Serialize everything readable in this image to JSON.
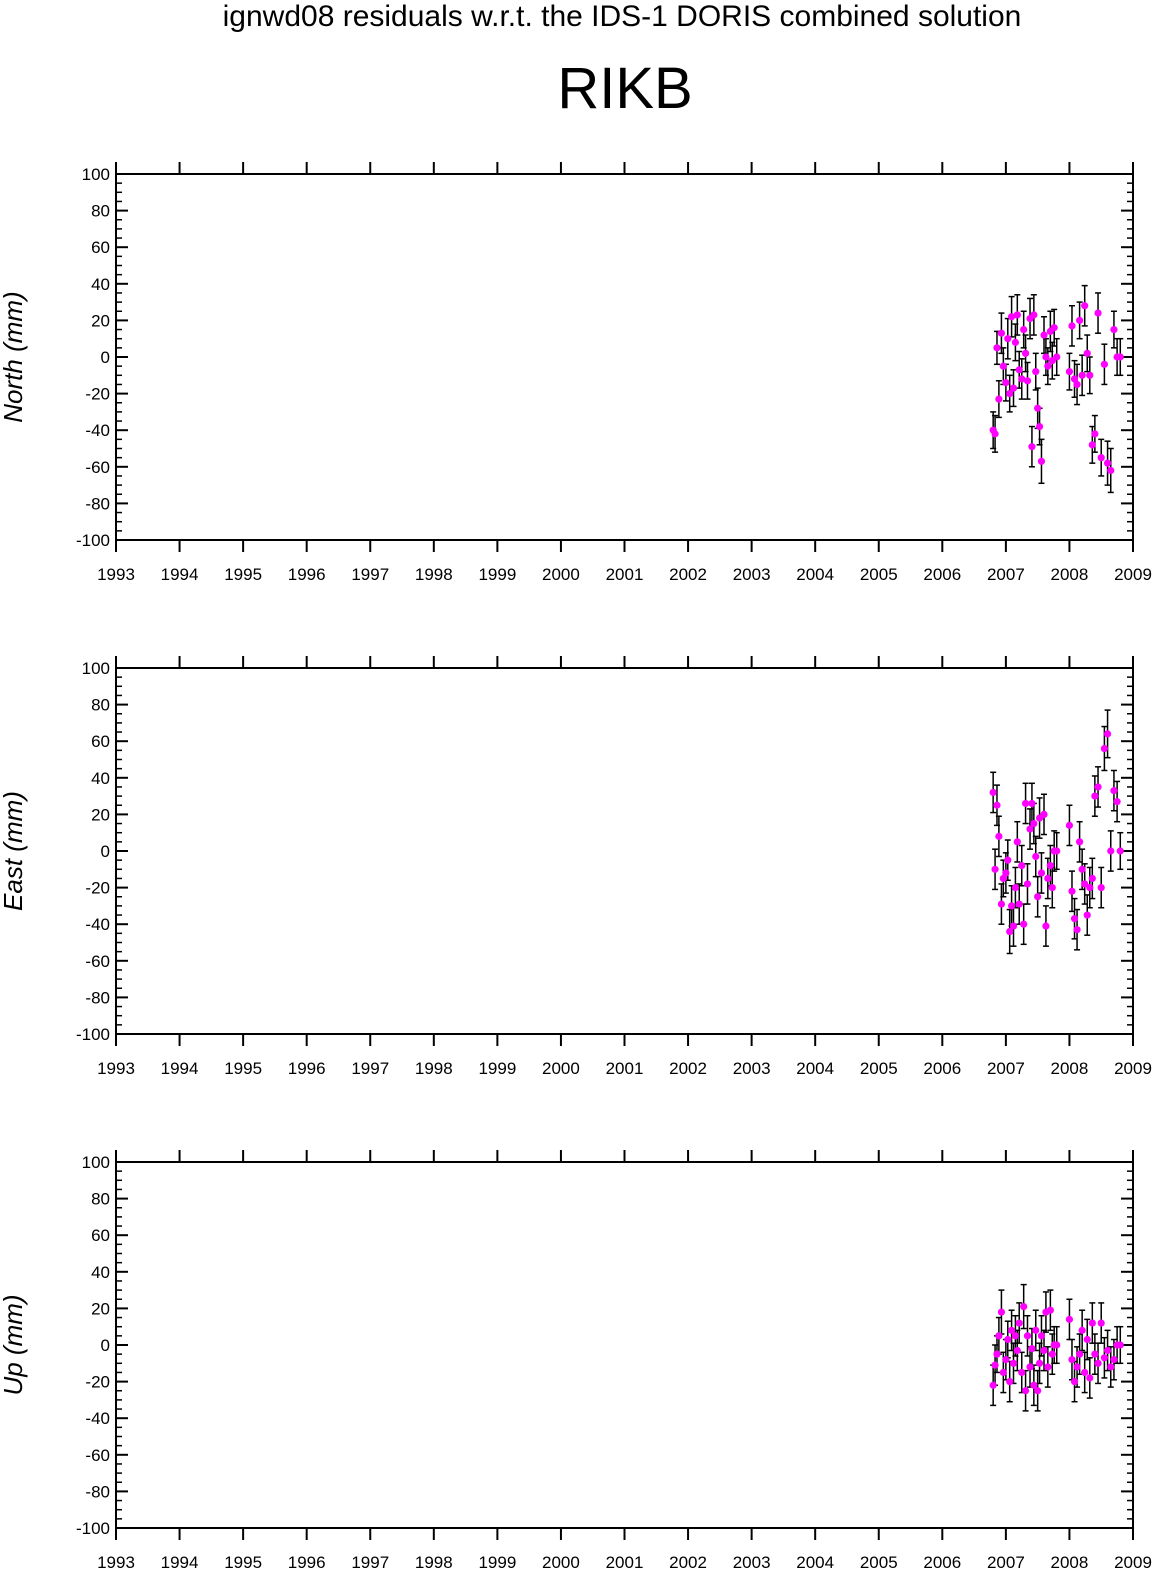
{
  "title": "ignwd08 residuals w.r.t. the IDS-1 DORIS combined solution",
  "subtitle": "RIKB",
  "colors": {
    "axis": "#000000",
    "point": "#ff00ff",
    "errorbar": "#000000"
  },
  "chart_data": [
    {
      "type": "scatter",
      "ylabel": "North (mm)",
      "xlim": [
        1993,
        2009
      ],
      "ylim": [
        -100,
        100
      ],
      "xticks": [
        "1993",
        "1994",
        "1995",
        "1996",
        "1997",
        "1998",
        "1999",
        "2000",
        "2001",
        "2002",
        "2003",
        "2004",
        "2005",
        "2006",
        "2007",
        "2008",
        "2009"
      ],
      "yticks": [
        "100",
        "80",
        "60",
        "40",
        "20",
        "0",
        "-20",
        "-40",
        "-60",
        "-80",
        "-100"
      ],
      "series": [
        {
          "x": [
            2006.8,
            2006.83,
            2006.86,
            2006.89,
            2006.93,
            2006.96,
            2007.0,
            2007.03,
            2007.06,
            2007.09,
            2007.12,
            2007.15,
            2007.18,
            2007.21,
            2007.25,
            2007.28,
            2007.31,
            2007.34,
            2007.38,
            2007.41,
            2007.44,
            2007.47,
            2007.5,
            2007.53,
            2007.56,
            2007.6,
            2007.63,
            2007.66,
            2007.7,
            2007.73,
            2007.76,
            2007.8,
            2008.0,
            2008.04,
            2008.08,
            2008.12,
            2008.16,
            2008.2,
            2008.24,
            2008.28,
            2008.32,
            2008.36,
            2008.4,
            2008.45,
            2008.5,
            2008.55,
            2008.6,
            2008.65,
            2008.7,
            2008.75,
            2008.8
          ],
          "y": [
            -40,
            -42,
            5,
            -23,
            13,
            -5,
            -14,
            10,
            -20,
            22,
            -17,
            8,
            23,
            -7,
            -12,
            15,
            2,
            -13,
            21,
            -49,
            23,
            -8,
            -28,
            -38,
            -57,
            12,
            0,
            -5,
            14,
            -2,
            16,
            0,
            -8,
            17,
            -12,
            -15,
            20,
            -10,
            28,
            2,
            -10,
            -48,
            -42,
            24,
            -55,
            -4,
            -58,
            -62,
            15,
            0,
            0
          ],
          "err": [
            10,
            10,
            9,
            10,
            11,
            10,
            10,
            11,
            10,
            11,
            10,
            10,
            11,
            10,
            11,
            10,
            10,
            10,
            11,
            11,
            11,
            10,
            11,
            10,
            12,
            10,
            10,
            10,
            11,
            10,
            10,
            10,
            10,
            11,
            10,
            11,
            10,
            11,
            11,
            10,
            10,
            10,
            10,
            11,
            10,
            11,
            12,
            12,
            10,
            10,
            10
          ]
        }
      ]
    },
    {
      "type": "scatter",
      "ylabel": "East (mm)",
      "xlim": [
        1993,
        2009
      ],
      "ylim": [
        -100,
        100
      ],
      "xticks": [
        "1993",
        "1994",
        "1995",
        "1996",
        "1997",
        "1998",
        "1999",
        "2000",
        "2001",
        "2002",
        "2003",
        "2004",
        "2005",
        "2006",
        "2007",
        "2008",
        "2009"
      ],
      "yticks": [
        "100",
        "80",
        "60",
        "40",
        "20",
        "0",
        "-20",
        "-40",
        "-60",
        "-80",
        "-100"
      ],
      "series": [
        {
          "x": [
            2006.8,
            2006.83,
            2006.86,
            2006.89,
            2006.93,
            2006.96,
            2007.0,
            2007.03,
            2007.06,
            2007.09,
            2007.12,
            2007.15,
            2007.18,
            2007.21,
            2007.25,
            2007.28,
            2007.31,
            2007.34,
            2007.38,
            2007.41,
            2007.44,
            2007.47,
            2007.5,
            2007.53,
            2007.56,
            2007.6,
            2007.63,
            2007.66,
            2007.7,
            2007.73,
            2007.76,
            2007.8,
            2008.0,
            2008.04,
            2008.08,
            2008.12,
            2008.16,
            2008.2,
            2008.24,
            2008.28,
            2008.32,
            2008.36,
            2008.4,
            2008.45,
            2008.5,
            2008.55,
            2008.6,
            2008.65,
            2008.7,
            2008.75,
            2008.8
          ],
          "y": [
            32,
            -10,
            25,
            8,
            -29,
            -15,
            -12,
            -5,
            -44,
            -30,
            -41,
            -20,
            5,
            -29,
            -8,
            -40,
            26,
            -18,
            12,
            26,
            15,
            -3,
            -25,
            18,
            -12,
            20,
            -41,
            -15,
            -8,
            -20,
            0,
            0,
            14,
            -22,
            -37,
            -43,
            5,
            -10,
            -18,
            -35,
            -20,
            -15,
            30,
            35,
            -20,
            56,
            64,
            0,
            33,
            27,
            0
          ],
          "err": [
            11,
            11,
            11,
            11,
            11,
            10,
            11,
            11,
            12,
            11,
            11,
            11,
            11,
            11,
            11,
            11,
            11,
            11,
            11,
            11,
            11,
            11,
            11,
            11,
            11,
            11,
            11,
            11,
            11,
            11,
            11,
            10,
            11,
            11,
            11,
            11,
            11,
            11,
            11,
            11,
            11,
            11,
            11,
            11,
            11,
            12,
            13,
            11,
            11,
            11,
            10
          ]
        }
      ]
    },
    {
      "type": "scatter",
      "ylabel": "Up (mm)",
      "xlim": [
        1993,
        2009
      ],
      "ylim": [
        -100,
        100
      ],
      "xticks": [
        "1993",
        "1994",
        "1995",
        "1996",
        "1997",
        "1998",
        "1999",
        "2000",
        "2001",
        "2002",
        "2003",
        "2004",
        "2005",
        "2006",
        "2007",
        "2008",
        "2009"
      ],
      "yticks": [
        "100",
        "80",
        "60",
        "40",
        "20",
        "0",
        "-20",
        "-40",
        "-60",
        "-80",
        "-100"
      ],
      "series": [
        {
          "x": [
            2006.8,
            2006.83,
            2006.86,
            2006.89,
            2006.93,
            2006.96,
            2007.0,
            2007.03,
            2007.06,
            2007.09,
            2007.12,
            2007.15,
            2007.18,
            2007.21,
            2007.25,
            2007.28,
            2007.31,
            2007.34,
            2007.38,
            2007.41,
            2007.44,
            2007.47,
            2007.5,
            2007.53,
            2007.56,
            2007.6,
            2007.63,
            2007.66,
            2007.7,
            2007.73,
            2007.76,
            2007.8,
            2008.0,
            2008.04,
            2008.08,
            2008.12,
            2008.16,
            2008.2,
            2008.24,
            2008.28,
            2008.32,
            2008.36,
            2008.4,
            2008.45,
            2008.5,
            2008.55,
            2008.6,
            2008.65,
            2008.7,
            2008.75,
            2008.8
          ],
          "y": [
            -22,
            -11,
            -5,
            5,
            18,
            -15,
            -8,
            3,
            -20,
            8,
            -10,
            5,
            -3,
            12,
            -15,
            21,
            -25,
            5,
            -12,
            -2,
            -22,
            8,
            -25,
            -10,
            5,
            -3,
            18,
            -12,
            19,
            -5,
            0,
            0,
            14,
            -8,
            -20,
            -12,
            -5,
            8,
            -15,
            3,
            -18,
            12,
            -5,
            -10,
            12,
            -7,
            -3,
            -12,
            -8,
            0,
            0
          ],
          "err": [
            11,
            11,
            10,
            10,
            12,
            11,
            11,
            10,
            11,
            11,
            11,
            11,
            11,
            11,
            11,
            12,
            11,
            11,
            11,
            11,
            11,
            11,
            11,
            11,
            11,
            11,
            11,
            11,
            11,
            11,
            10,
            10,
            11,
            11,
            11,
            11,
            11,
            11,
            11,
            11,
            11,
            11,
            11,
            11,
            11,
            11,
            11,
            11,
            11,
            10,
            10
          ]
        }
      ]
    }
  ]
}
